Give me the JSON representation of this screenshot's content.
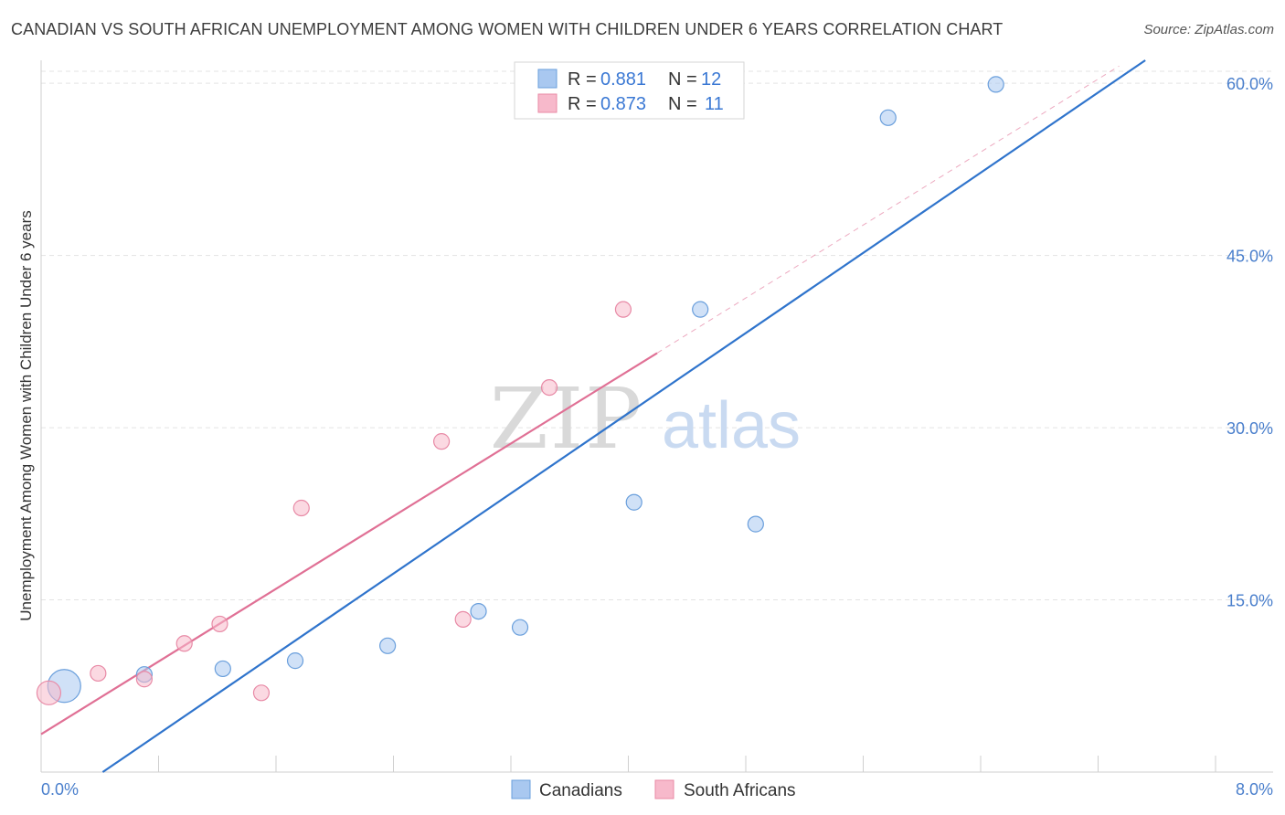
{
  "header": {
    "title": "CANADIAN VS SOUTH AFRICAN UNEMPLOYMENT AMONG WOMEN WITH CHILDREN UNDER 6 YEARS CORRELATION CHART",
    "source": "Source: ZipAtlas.com"
  },
  "watermark": {
    "zip": "ZIP",
    "atlas": "atlas"
  },
  "chart_data": {
    "type": "scatter",
    "title": "CANADIAN VS SOUTH AFRICAN UNEMPLOYMENT AMONG WOMEN WITH CHILDREN UNDER 6 YEARS CORRELATION CHART",
    "xlabel": "",
    "ylabel": "Unemployment Among Women with Children Under 6 years",
    "xlim": [
      0,
      8
    ],
    "ylim": [
      0,
      62
    ],
    "x_tick_labels": [
      "0.0%",
      "8.0%"
    ],
    "y_ticks": [
      15,
      30,
      45,
      60
    ],
    "y_tick_labels": [
      "15.0%",
      "30.0%",
      "45.0%",
      "60.0%"
    ],
    "grid": true,
    "legend_position": "top-center",
    "series": [
      {
        "name": "Canadians",
        "color": "#a9c8f0",
        "stroke": "#6a9fdc",
        "line_color": "#2f74cc",
        "R": "0.881",
        "N": "12",
        "points": [
          {
            "x": 0.15,
            "y": 7.5,
            "size": 3
          },
          {
            "x": 0.67,
            "y": 8.5,
            "size": 1
          },
          {
            "x": 1.18,
            "y": 9.0,
            "size": 1
          },
          {
            "x": 1.65,
            "y": 9.7,
            "size": 1
          },
          {
            "x": 2.25,
            "y": 11.0,
            "size": 1
          },
          {
            "x": 2.84,
            "y": 14.0,
            "size": 1
          },
          {
            "x": 3.11,
            "y": 12.6,
            "size": 1
          },
          {
            "x": 3.85,
            "y": 23.5,
            "size": 1
          },
          {
            "x": 4.28,
            "y": 40.3,
            "size": 1
          },
          {
            "x": 4.64,
            "y": 21.6,
            "size": 1
          },
          {
            "x": 5.5,
            "y": 57.0,
            "size": 1
          },
          {
            "x": 6.2,
            "y": 59.9,
            "size": 1
          }
        ],
        "trend": {
          "x0": 0.4,
          "y0": 0.0,
          "x1": 7.17,
          "y1": 62.0
        }
      },
      {
        "name": "South Africans",
        "color": "#f7b9cb",
        "stroke": "#e88aa6",
        "line_color": "#e07095",
        "R": "0.873",
        "N": "11",
        "points": [
          {
            "x": 0.05,
            "y": 6.9,
            "size": 2
          },
          {
            "x": 0.37,
            "y": 8.6,
            "size": 1
          },
          {
            "x": 0.67,
            "y": 8.1,
            "size": 1
          },
          {
            "x": 0.93,
            "y": 11.2,
            "size": 1
          },
          {
            "x": 1.16,
            "y": 12.9,
            "size": 1
          },
          {
            "x": 1.43,
            "y": 6.9,
            "size": 1
          },
          {
            "x": 1.69,
            "y": 23.0,
            "size": 1
          },
          {
            "x": 2.6,
            "y": 28.8,
            "size": 1
          },
          {
            "x": 2.74,
            "y": 13.3,
            "size": 1
          },
          {
            "x": 3.3,
            "y": 33.5,
            "size": 1
          },
          {
            "x": 3.78,
            "y": 40.3,
            "size": 1
          }
        ],
        "trend": {
          "x0": 0.0,
          "y0": 3.3,
          "x1": 4.0,
          "y1": 36.5
        },
        "trend_ext": {
          "x0": 4.0,
          "y0": 36.5,
          "x1": 7.0,
          "y1": 61.5
        }
      }
    ]
  },
  "legend": {
    "r_label": "R =",
    "n_label": "N ="
  }
}
